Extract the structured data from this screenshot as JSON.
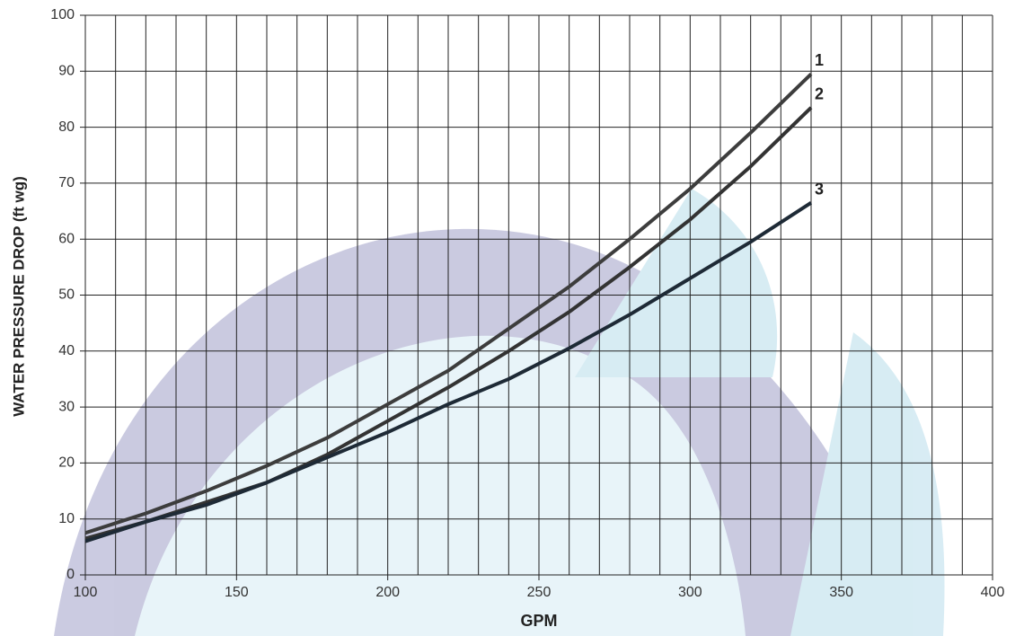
{
  "chart_data": {
    "type": "line",
    "xlabel": "GPM",
    "ylabel": "WATER PRESSURE DROP (ft wg)",
    "x": [
      100,
      120,
      140,
      160,
      180,
      200,
      220,
      240,
      260,
      280,
      300,
      320,
      340
    ],
    "series": [
      {
        "name": "1",
        "color": "#3d3d3d",
        "values": [
          7.5,
          11,
          15,
          19.5,
          24.5,
          30.5,
          36.5,
          44,
          51.5,
          60,
          69,
          79,
          89.5
        ]
      },
      {
        "name": "2",
        "color": "#333333",
        "values": [
          6.5,
          9.5,
          13,
          16.5,
          21.5,
          27.5,
          33.5,
          40,
          47,
          55,
          63.5,
          73,
          83.5
        ]
      },
      {
        "name": "3",
        "color": "#1e2a36",
        "values": [
          6,
          9.5,
          12.5,
          16.5,
          21,
          25.5,
          30.5,
          35,
          40.5,
          46.5,
          53,
          59.5,
          66.5
        ]
      }
    ],
    "xlim": [
      100,
      400
    ],
    "ylim": [
      0,
      100
    ],
    "xticks": [
      100,
      150,
      200,
      250,
      300,
      350,
      400
    ],
    "x_minor_grid": [
      110,
      120,
      130,
      140,
      160,
      170,
      180,
      190,
      210,
      220,
      230,
      240,
      260,
      270,
      280,
      290,
      310,
      320,
      330,
      340,
      360,
      370,
      380,
      390
    ],
    "yticks": [
      0,
      10,
      20,
      30,
      40,
      50,
      60,
      70,
      80,
      90,
      100
    ],
    "grid": true
  }
}
